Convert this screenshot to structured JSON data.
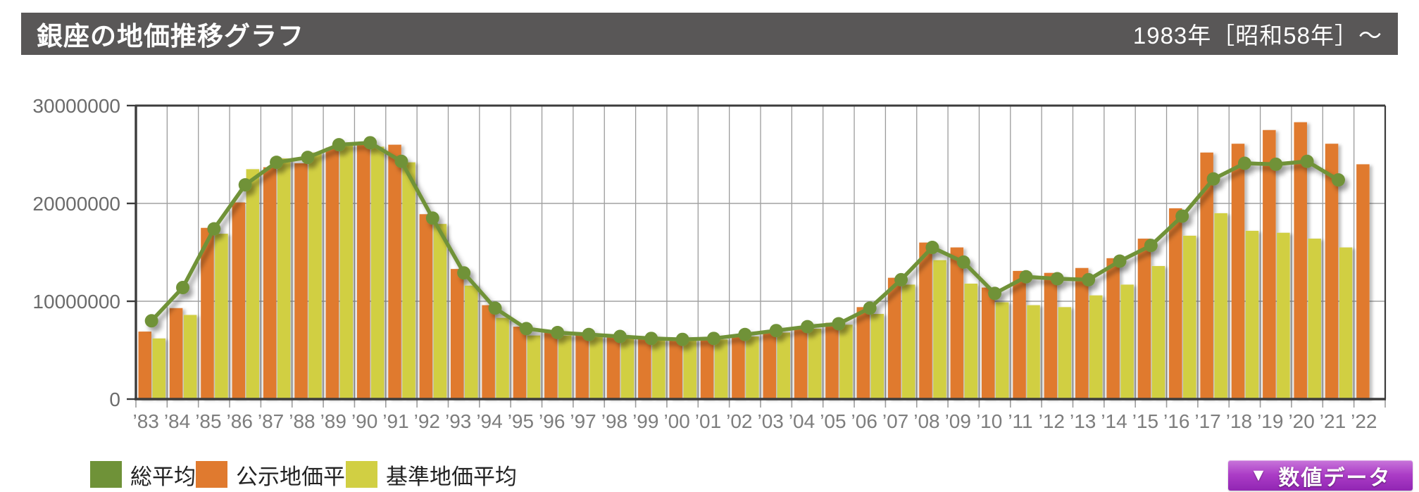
{
  "header": {
    "title": "銀座の地価推移グラフ",
    "period": "1983年［昭和58年］～"
  },
  "legend": [
    {
      "label": "総平均",
      "color": "#6f9238"
    },
    {
      "label": "公示地価平均",
      "color": "#e07a2f"
    },
    {
      "label": "基準地価平均",
      "color": "#d1cf43"
    }
  ],
  "button": {
    "icon": "▼",
    "label": "数値データ"
  },
  "colors": {
    "header_bg": "#595757",
    "axis": "#3c3c3c",
    "grid": "#9b9b9b",
    "tick_label": "#6b6b6b",
    "x_label": "#7d7d7d",
    "line_green": "#6f9238",
    "bar_orange": "#e07a2f",
    "bar_yellow": "#d1cf43",
    "button_purple": "#a332c2"
  },
  "chart_data": {
    "type": "bar+line",
    "title": "銀座の地価推移グラフ",
    "categories": [
      "’83",
      "’84",
      "’85",
      "’86",
      "’87",
      "’88",
      "’89",
      "’90",
      "’91",
      "’92",
      "’93",
      "’94",
      "’95",
      "’96",
      "’97",
      "’98",
      "’99",
      "’00",
      "’01",
      "’02",
      "’03",
      "’04",
      "’05",
      "’06",
      "’07",
      "’08",
      "’09",
      "’10",
      "’11",
      "’12",
      "’13",
      "’14",
      "’15",
      "’16",
      "’17",
      "’18",
      "’19",
      "’20",
      "’21",
      "’22"
    ],
    "series": [
      {
        "name": "公示地価平均",
        "type": "bar",
        "color": "#e07a2f",
        "values": [
          6900000,
          9300000,
          17500000,
          20100000,
          23700000,
          24100000,
          25700000,
          26100000,
          26000000,
          18900000,
          13300000,
          9600000,
          7400000,
          6900000,
          6700000,
          6500000,
          6300000,
          6200000,
          6300000,
          6600000,
          7000000,
          7400000,
          7800000,
          9400000,
          12400000,
          16000000,
          15500000,
          11400000,
          13100000,
          12900000,
          13400000,
          14400000,
          16400000,
          19500000,
          25200000,
          26100000,
          27500000,
          28300000,
          26100000,
          24000000
        ]
      },
      {
        "name": "基準地価平均",
        "type": "bar",
        "color": "#d1cf43",
        "values": [
          6200000,
          8600000,
          16900000,
          23500000,
          24600000,
          25200000,
          26000000,
          25800000,
          24200000,
          17900000,
          11600000,
          8300000,
          6500000,
          6500000,
          6400000,
          6200000,
          6100000,
          6000000,
          6100000,
          6400000,
          6800000,
          7200000,
          7600000,
          8700000,
          11700000,
          14200000,
          11800000,
          9900000,
          9600000,
          9400000,
          10600000,
          11700000,
          13600000,
          16700000,
          19000000,
          17200000,
          17000000,
          16400000,
          15500000,
          null
        ]
      },
      {
        "name": "総平均",
        "type": "line",
        "color": "#6f9238",
        "values": [
          8000000,
          11400000,
          17400000,
          21900000,
          24200000,
          24700000,
          26000000,
          26200000,
          24300000,
          18500000,
          12900000,
          9300000,
          7200000,
          6800000,
          6600000,
          6400000,
          6200000,
          6100000,
          6200000,
          6600000,
          7000000,
          7400000,
          7700000,
          9300000,
          12200000,
          15500000,
          14000000,
          10800000,
          12500000,
          12300000,
          12200000,
          14100000,
          15700000,
          18700000,
          22500000,
          24100000,
          24000000,
          24300000,
          22400000,
          null
        ]
      }
    ],
    "ylim": [
      0,
      30000000
    ],
    "y_ticks": [
      0,
      10000000,
      20000000,
      30000000
    ],
    "y_tick_labels": [
      "0",
      "10000000",
      "20000000",
      "30000000"
    ],
    "grid": true,
    "legend_position": "bottom"
  }
}
